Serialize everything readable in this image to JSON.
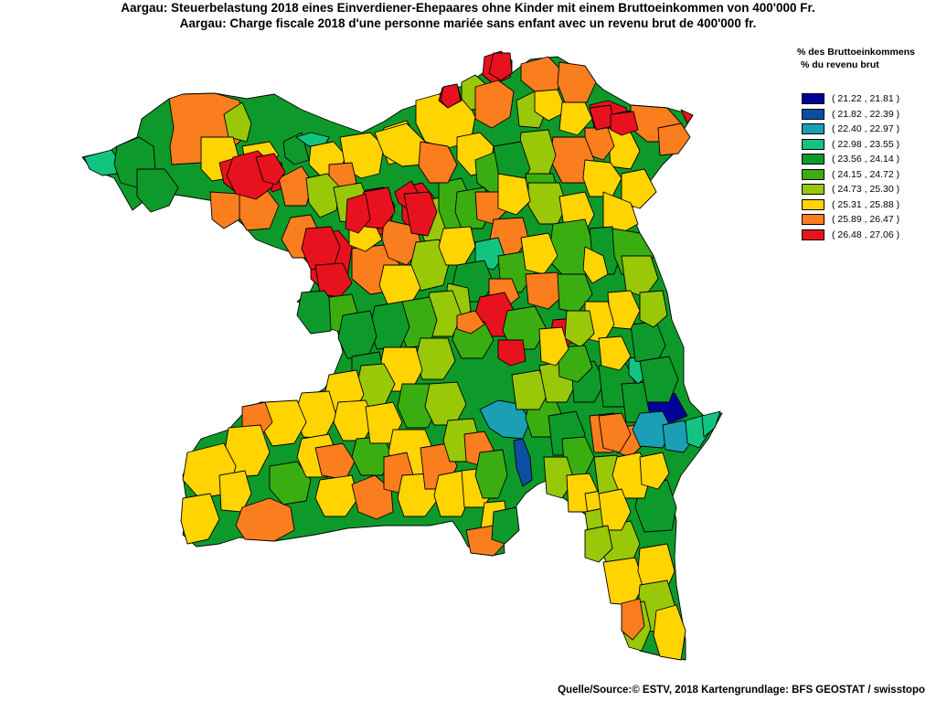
{
  "title": {
    "line_de": "Aargau: Steuerbelastung 2018 eines Einverdiener-Ehepaares ohne Kinder mit einem Bruttoeinkommen von 400'000 Fr.",
    "line_fr": "Aargau: Charge fiscale 2018 d'une personne mariée sans enfant avec un revenu brut de 400'000 fr."
  },
  "legend": {
    "heading_de": "% des Bruttoeinkommens",
    "heading_fr": "% du revenu brut",
    "classes": [
      {
        "label": "( 21.22 , 21.81 )",
        "color": "#00009a"
      },
      {
        "label": "( 21.82 , 22.39 )",
        "color": "#0a4fa3"
      },
      {
        "label": "( 22.40 , 22.97 )",
        "color": "#1a9fb4"
      },
      {
        "label": "( 22.98 , 23.55 )",
        "color": "#12c480"
      },
      {
        "label": "( 23.56 , 24.14 )",
        "color": "#0e9a2a"
      },
      {
        "label": "( 24.15 , 24.72 )",
        "color": "#3aae10"
      },
      {
        "label": "( 24.73 , 25.30 )",
        "color": "#98c808"
      },
      {
        "label": "( 25.31 , 25.88 )",
        "color": "#ffd400"
      },
      {
        "label": "( 25.89 , 26.47 )",
        "color": "#fa7d1e"
      },
      {
        "label": "( 26.48 , 27.06 )",
        "color": "#e8121e"
      }
    ]
  },
  "source": "Quelle/Source:© ESTV, 2018 Kartengrundlage: BFS GEOSTAT / swisstopo"
}
